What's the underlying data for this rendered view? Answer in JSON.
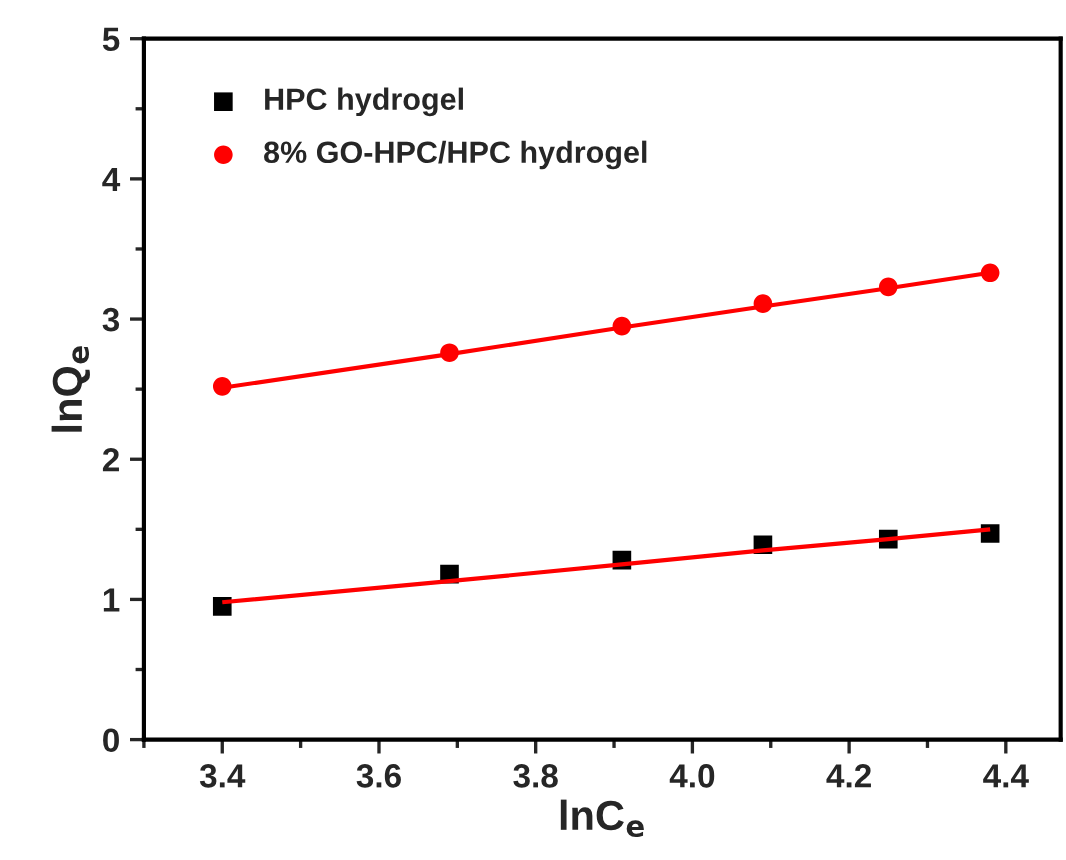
{
  "chart_data": {
    "type": "scatter",
    "xlabel": "lnC$_{e}$",
    "ylabel": "lnQ$_{e}$",
    "x": [
      3.4,
      3.69,
      3.91,
      4.09,
      4.25,
      4.38
    ],
    "series": [
      {
        "name": "HPC hydrogel",
        "color": "#000000",
        "marker": "square",
        "values": [
          0.95,
          1.18,
          1.28,
          1.39,
          1.43,
          1.47
        ]
      },
      {
        "name": "8% GO-HPC/HPC hydrogel",
        "color": "#ff0000",
        "marker": "circle",
        "values": [
          2.52,
          2.76,
          2.95,
          3.11,
          3.23,
          3.33
        ]
      },
      {
        "type": "line",
        "color": "#ff0000",
        "marker": "none",
        "values": [
          0.98,
          1.13,
          1.25,
          1.35,
          1.43,
          1.5
        ]
      },
      {
        "type": "line",
        "color": "#ff0000",
        "marker": "none",
        "values": [
          2.51,
          2.75,
          2.94,
          3.09,
          3.22,
          3.33
        ]
      }
    ],
    "xlim": [
      3.3,
      4.47
    ],
    "xticks": [
      3.4,
      3.6,
      3.8,
      {
        "value": 4.0,
        "label": "4.0"
      },
      4.2,
      4.4
    ],
    "ylim": [
      0,
      5
    ],
    "yticks": [
      0,
      1,
      2,
      3,
      4,
      5
    ],
    "grid": false,
    "legend": "top left"
  }
}
